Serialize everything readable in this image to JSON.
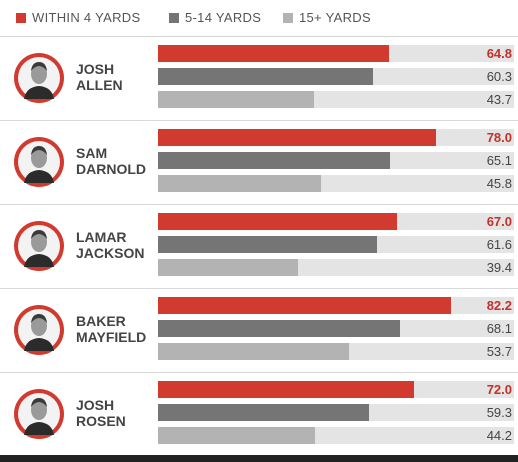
{
  "colors": {
    "within4": "#d13a2e",
    "mid": "#757575",
    "long": "#b3b3b3",
    "track": "#e4e4e4",
    "highlight_text": "#c0322b",
    "avatar_ring": "#d13a2e"
  },
  "chart_data": {
    "type": "bar",
    "orientation": "horizontal",
    "legend_position": "top-left",
    "xlim": [
      0,
      100
    ],
    "series": [
      {
        "name": "WITHIN 4 YARDS",
        "values": [
          64.8,
          78.0,
          67.0,
          82.2,
          72.0
        ]
      },
      {
        "name": "5-14 YARDS",
        "values": [
          60.3,
          65.1,
          61.6,
          68.1,
          59.3
        ]
      },
      {
        "name": "15+ YARDS",
        "values": [
          43.7,
          45.8,
          39.4,
          53.7,
          44.2
        ]
      }
    ],
    "labels": [
      [
        "64.8",
        "60.3",
        "43.7"
      ],
      [
        "78.0",
        "65.1",
        "45.8"
      ],
      [
        "67.0",
        "61.6",
        "39.4"
      ],
      [
        "82.2",
        "68.1",
        "53.7"
      ],
      [
        "72.0",
        "59.3",
        "44.2"
      ]
    ]
  },
  "players": [
    {
      "first": "JOSH",
      "last": "ALLEN"
    },
    {
      "first": "SAM",
      "last": "DARNOLD"
    },
    {
      "first": "LAMAR",
      "last": "JACKSON"
    },
    {
      "first": "BAKER",
      "last": "MAYFIELD"
    },
    {
      "first": "JOSH",
      "last": "ROSEN"
    }
  ]
}
